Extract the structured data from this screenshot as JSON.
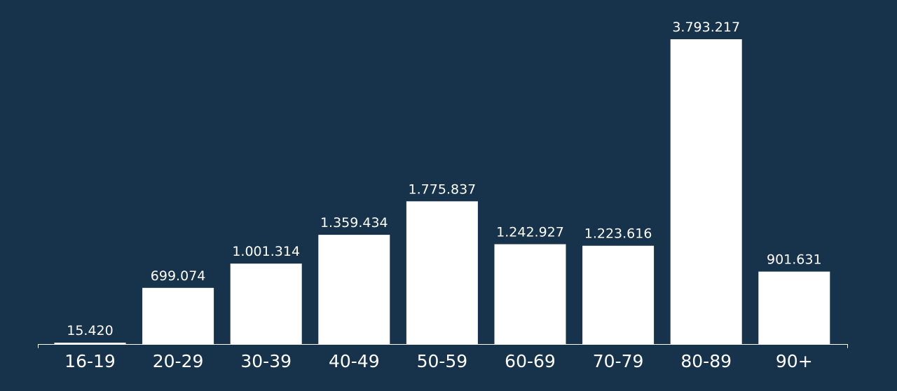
{
  "chart_data": {
    "type": "bar",
    "categories": [
      "16-19",
      "20-29",
      "30-39",
      "40-49",
      "50-59",
      "60-69",
      "70-79",
      "80-89",
      "90+"
    ],
    "values": [
      15420,
      699074,
      1001314,
      1359434,
      1775837,
      1242927,
      1223616,
      3793217,
      901631
    ],
    "value_labels": [
      "15.420",
      "699.074",
      "1.001.314",
      "1.359.434",
      "1.775.837",
      "1.242.927",
      "1.223.616",
      "3.793.217",
      "901.631"
    ],
    "ylim": [
      0,
      3793217
    ],
    "grid": false,
    "legend": "none",
    "colors": {
      "background": "#17334b",
      "bar": "#ffffff",
      "text": "#ffffff",
      "axis": "#ffffff"
    }
  }
}
